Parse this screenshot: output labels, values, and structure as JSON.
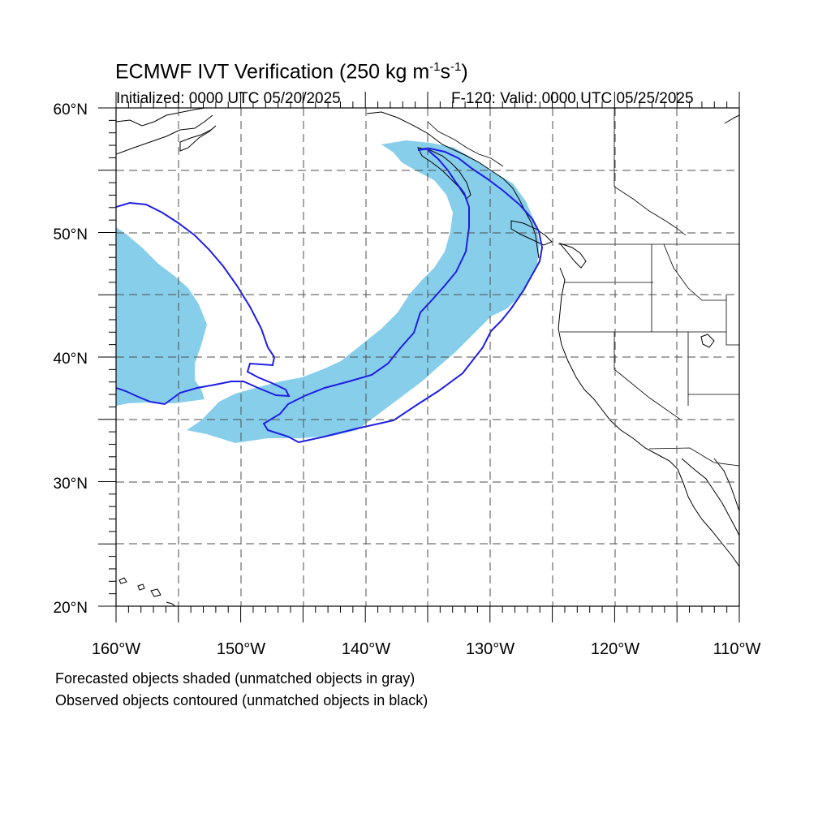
{
  "header": {
    "title": "ECMWF IVT Verification (250 kg m",
    "title_sup1": "-1",
    "title_mid": "s",
    "title_sup2": "-1",
    "title_end": ")",
    "initialized": "Initialized: 0000 UTC 05/20/2025",
    "valid": "F-120: Valid: 0000 UTC 05/25/2025"
  },
  "map": {
    "lon_range": [
      -160,
      -110
    ],
    "lat_range": [
      20,
      60
    ],
    "lon_labels": [
      "160°W",
      "150°W",
      "140°W",
      "130°W",
      "120°W",
      "110°W"
    ],
    "lat_labels": [
      "20°N",
      "30°N",
      "40°N",
      "50°N",
      "60°N"
    ],
    "forecast_color": "#87ceeb",
    "observed_color": "#1e1ee6",
    "grid_style": "dashed"
  },
  "notes": {
    "line1": "Forecasted objects shaded (unmatched objects in gray)",
    "line2": "Observed objects contoured (unmatched objects in black)"
  }
}
